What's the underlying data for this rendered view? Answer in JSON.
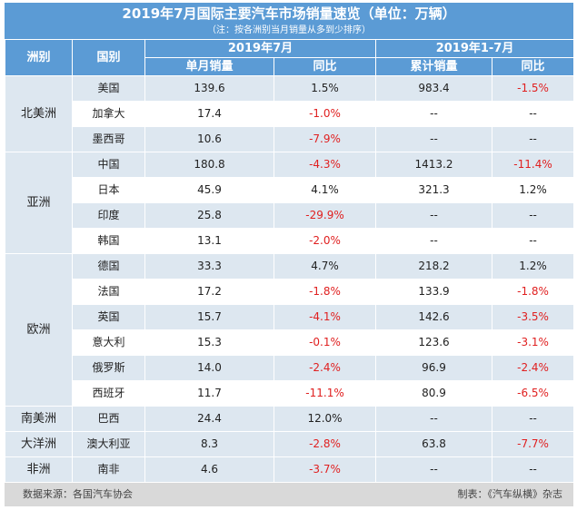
{
  "title": "2019年7月国际主要汽车市场销量速览（单位：万辆）",
  "subtitle": "（注：按各洲别当月销量从多到少排序）",
  "headers": {
    "continent": "洲别",
    "country": "国别",
    "group_month": "2019年7月",
    "group_ytd": "2019年1-7月",
    "monthly_sales": "单月销量",
    "yoy": "同比",
    "cumulative_sales": "累计销量",
    "yoy2": "同比"
  },
  "continents": {
    "north_america": "北美洲",
    "asia": "亚洲",
    "europe": "欧洲",
    "south_america": "南美洲",
    "oceania": "大洋洲",
    "africa": "非洲"
  },
  "rows": [
    {
      "country": "美国",
      "month": "139.6",
      "month_yoy": "1.5%",
      "ytd": "983.4",
      "ytd_yoy": "-1.5%"
    },
    {
      "country": "加拿大",
      "month": "17.4",
      "month_yoy": "-1.0%",
      "ytd": "--",
      "ytd_yoy": "--"
    },
    {
      "country": "墨西哥",
      "month": "10.6",
      "month_yoy": "-7.9%",
      "ytd": "--",
      "ytd_yoy": "--"
    },
    {
      "country": "中国",
      "month": "180.8",
      "month_yoy": "-4.3%",
      "ytd": "1413.2",
      "ytd_yoy": "-11.4%"
    },
    {
      "country": "日本",
      "month": "45.9",
      "month_yoy": "4.1%",
      "ytd": "321.3",
      "ytd_yoy": "1.2%"
    },
    {
      "country": "印度",
      "month": "25.8",
      "month_yoy": "-29.9%",
      "ytd": "--",
      "ytd_yoy": "--"
    },
    {
      "country": "韩国",
      "month": "13.1",
      "month_yoy": "-2.0%",
      "ytd": "--",
      "ytd_yoy": "--"
    },
    {
      "country": "德国",
      "month": "33.3",
      "month_yoy": "4.7%",
      "ytd": "218.2",
      "ytd_yoy": "1.2%"
    },
    {
      "country": "法国",
      "month": "17.2",
      "month_yoy": "-1.8%",
      "ytd": "133.9",
      "ytd_yoy": "-1.8%"
    },
    {
      "country": "英国",
      "month": "15.7",
      "month_yoy": "-4.1%",
      "ytd": "142.6",
      "ytd_yoy": "-3.5%"
    },
    {
      "country": "意大利",
      "month": "15.3",
      "month_yoy": "-0.1%",
      "ytd": "123.6",
      "ytd_yoy": "-3.1%"
    },
    {
      "country": "俄罗斯",
      "month": "14.0",
      "month_yoy": "-2.4%",
      "ytd": "96.9",
      "ytd_yoy": "-2.4%"
    },
    {
      "country": "西班牙",
      "month": "11.7",
      "month_yoy": "-11.1%",
      "ytd": "80.9",
      "ytd_yoy": "-6.5%"
    },
    {
      "country": "巴西",
      "month": "24.4",
      "month_yoy": "12.0%",
      "ytd": "--",
      "ytd_yoy": "--"
    },
    {
      "country": "澳大利亚",
      "month": "8.3",
      "month_yoy": "-2.8%",
      "ytd": "63.8",
      "ytd_yoy": "-7.7%"
    },
    {
      "country": "南非",
      "month": "4.6",
      "month_yoy": "-3.7%",
      "ytd": "--",
      "ytd_yoy": "--"
    }
  ],
  "footer": {
    "source": "数据来源：各国汽车协会",
    "maker": "制表：《汽车纵横》杂志"
  },
  "colors": {
    "header_blue": "#5b9bd5",
    "band_blue": "#dde7f0",
    "negative_red": "#e02020",
    "footer_gray": "#d9d9d9"
  }
}
